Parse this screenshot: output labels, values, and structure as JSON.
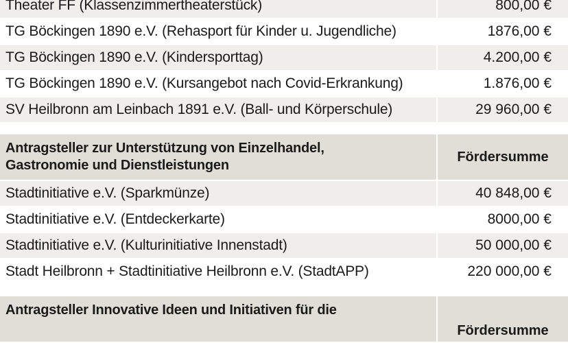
{
  "section1": {
    "rows": [
      {
        "name": "Theater FF (Klassenzimmertheaterstück)",
        "amount": "800,00 €"
      },
      {
        "name": "TG Böckingen 1890 e.V. (Rehasport für Kinder u. Jugendliche)",
        "amount": "1876,00 €"
      },
      {
        "name": "TG Böckingen 1890 e.V. (Kindersporttag)",
        "amount": "4.200,00 €"
      },
      {
        "name": "TG Böckingen 1890 e.V. (Kursangebot nach Covid-Erkrankung)",
        "amount": "1.876,00 €"
      },
      {
        "name": "SV Heilbronn am Leinbach 1891 e.V. (Ball- und Körperschule)",
        "amount": "29 960,00 €"
      }
    ]
  },
  "section2": {
    "header_line1": "Antragsteller zur Unterstützung von Einzelhandel,",
    "header_line2": "Gastronomie und Dienstleistungen",
    "header_amount": "Fördersumme",
    "rows": [
      {
        "name": "Stadtinitiative e.V. (Sparkmünze)",
        "amount": "40 848,00 €"
      },
      {
        "name": "Stadtinitiative e.V. (Entdeckerkarte)",
        "amount": "8000,00 €"
      },
      {
        "name": "Stadtinitiative e.V. (Kulturinitiative Innenstadt)",
        "amount": "50 000,00 €"
      },
      {
        "name": "Stadt Heilbronn + Stadtinitiative Heilbronn e.V. (StadtAPP)",
        "amount": "220 000,00 €"
      }
    ]
  },
  "section3": {
    "header_line1": "Antragsteller Innovative Ideen und Initiativen für die",
    "header_amount": "Fördersumme"
  }
}
